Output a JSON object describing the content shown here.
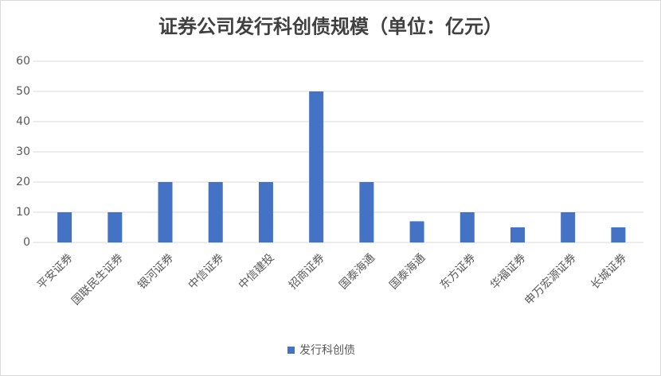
{
  "chart_data": {
    "type": "bar",
    "title": "证券公司发行科创债规模（单位：亿元）",
    "categories": [
      "平安证券",
      "国联民生证券",
      "银河证券",
      "中信证券",
      "中信建投",
      "招商证券",
      "国泰海通",
      "国泰海通",
      "东方证券",
      "华福证券",
      "申万宏源证券",
      "长城证券"
    ],
    "series": [
      {
        "name": "发行科创债",
        "color": "#4472c4",
        "values": [
          10,
          10,
          20,
          20,
          20,
          50,
          20,
          7,
          10,
          5,
          10,
          5
        ]
      }
    ],
    "ylim": [
      0,
      60
    ],
    "yticks": [
      0,
      10,
      20,
      30,
      40,
      50,
      60
    ],
    "grid": true,
    "legend": "bottom"
  }
}
